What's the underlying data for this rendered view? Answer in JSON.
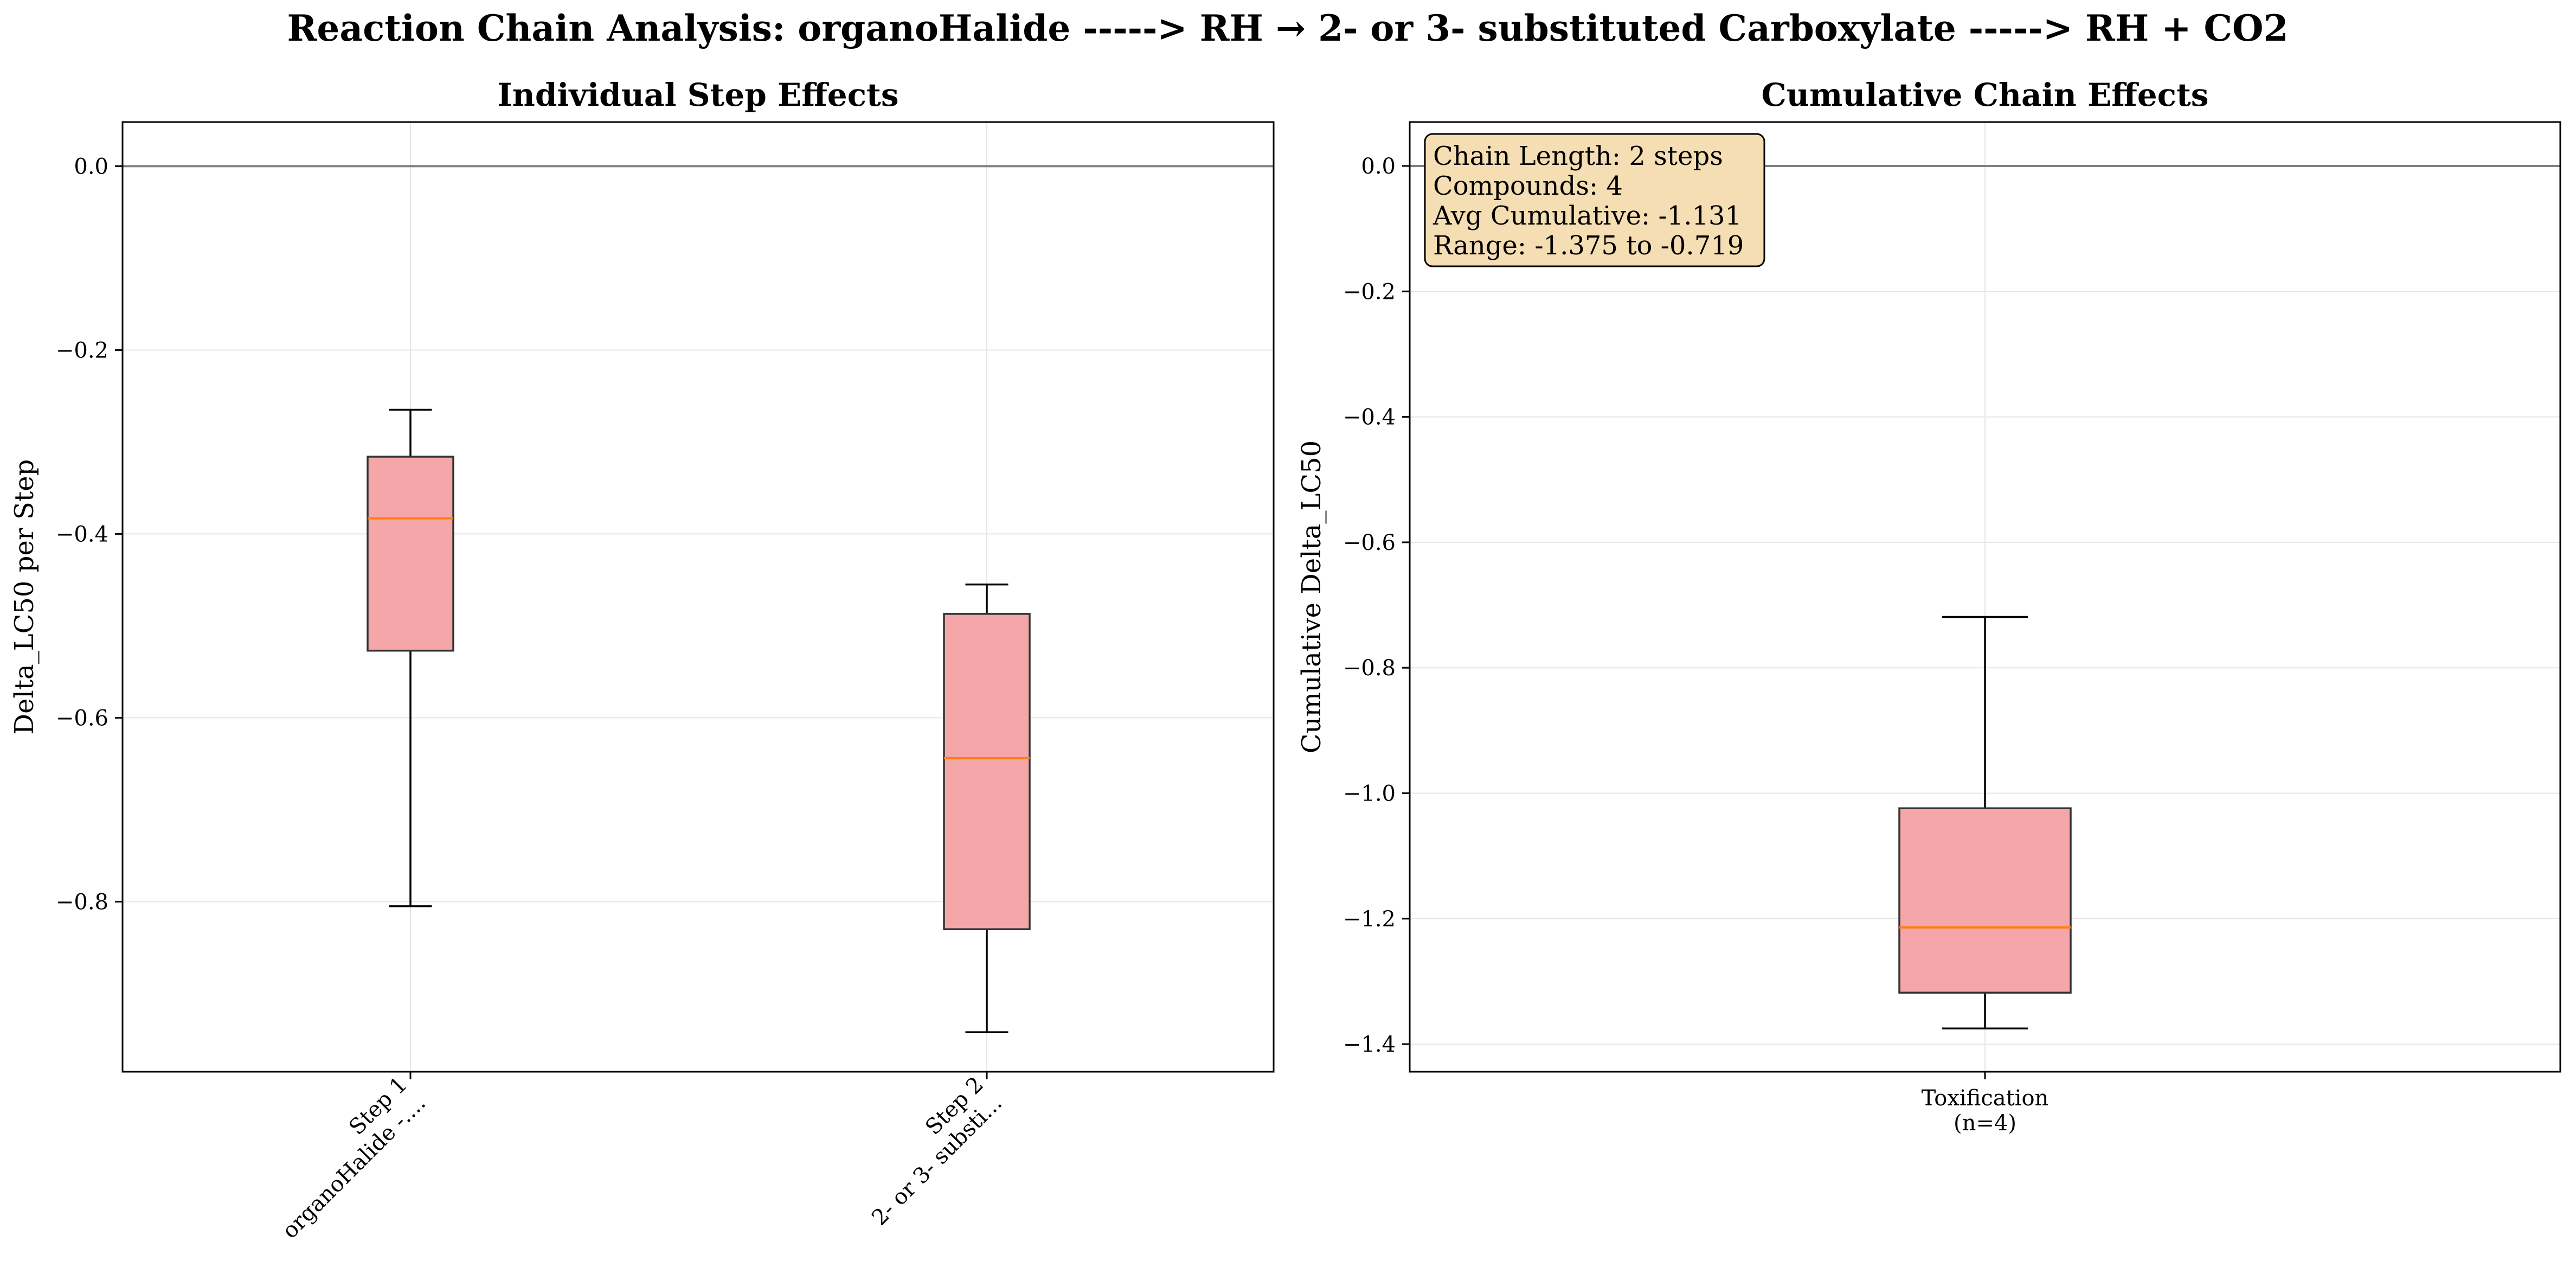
{
  "figure": {
    "title": "Reaction Chain Analysis: organoHalide -----> RH → 2- or 3- substituted Carboxylate -----> RH + CO2"
  },
  "colors": {
    "box_fill": "#f4a6a8",
    "box_edge": "#333333",
    "median": "#ff7f0e",
    "whisker": "#000000",
    "grid": "#e6e6e6",
    "zero_line": "#808080",
    "annotation_fill": "#f5deb3"
  },
  "chart_data": [
    {
      "type": "box",
      "title": "Individual Step Effects",
      "xlabel": "",
      "ylabel": "Delta_LC50 per Step",
      "ylim": [
        -0.985,
        0.048
      ],
      "yticks": [
        0.0,
        -0.2,
        -0.4,
        -0.6,
        -0.8
      ],
      "ytick_labels": [
        "0.0",
        "−0.2",
        "−0.4",
        "−0.6",
        "−0.8"
      ],
      "reference_line": 0.0,
      "grid": true,
      "categories": [
        [
          "Step 1",
          "organoHalide -...."
        ],
        [
          "Step 2",
          "2- or 3- substi..."
        ]
      ],
      "xtick_rotation": 45,
      "boxes": [
        {
          "whisker_low": -0.805,
          "q1": -0.527,
          "median": -0.383,
          "q3": -0.316,
          "whisker_high": -0.265
        },
        {
          "whisker_low": -0.942,
          "q1": -0.83,
          "median": -0.644,
          "q3": -0.487,
          "whisker_high": -0.455
        }
      ]
    },
    {
      "type": "box",
      "title": "Cumulative Chain Effects",
      "xlabel": "",
      "ylabel": "Cumulative Delta_LC50",
      "ylim": [
        -1.444,
        0.07
      ],
      "yticks": [
        0.0,
        -0.2,
        -0.4,
        -0.6,
        -0.8,
        -1.0,
        -1.2,
        -1.4
      ],
      "ytick_labels": [
        "0.0",
        "−0.2",
        "−0.4",
        "−0.6",
        "−0.8",
        "−1.0",
        "−1.2",
        "−1.4"
      ],
      "reference_line": 0.0,
      "grid": true,
      "categories": [
        [
          "Toxification",
          "(n=4)"
        ]
      ],
      "xtick_rotation": 0,
      "boxes": [
        {
          "whisker_low": -1.375,
          "q1": -1.318,
          "median": -1.214,
          "q3": -1.024,
          "whisker_high": -0.719
        }
      ],
      "annotation": [
        "Chain Length: 2 steps",
        "Compounds: 4",
        "Avg Cumulative: -1.131",
        "Range: -1.375 to -0.719"
      ]
    }
  ]
}
